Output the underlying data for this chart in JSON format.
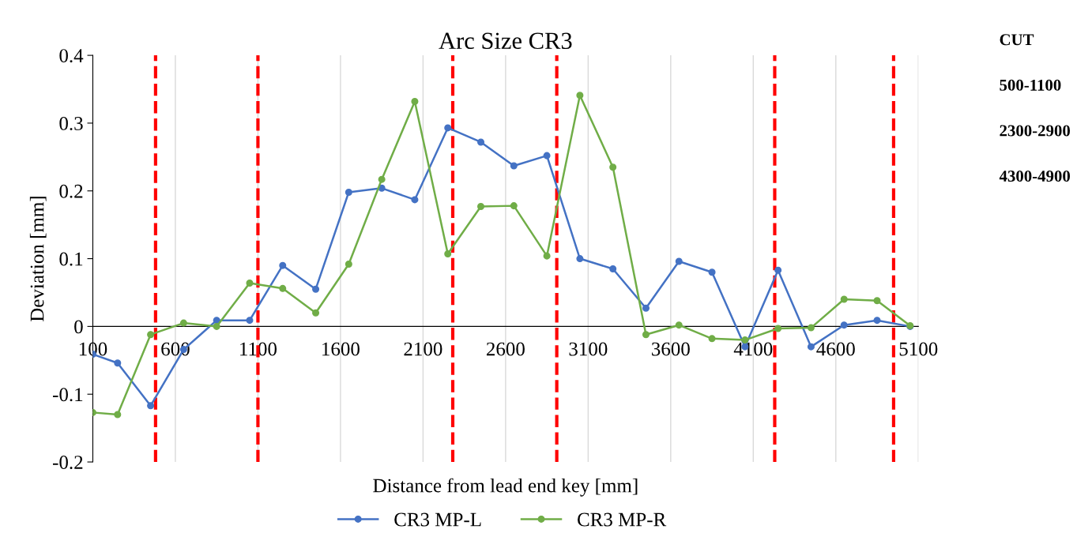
{
  "chart_data": {
    "type": "line",
    "title": "Arc Size CR3",
    "xlabel": "Distance from lead end key [mm]",
    "ylabel": "Deviation [mm]",
    "x": [
      100,
      250,
      450,
      650,
      850,
      1050,
      1250,
      1450,
      1650,
      1850,
      2050,
      2250,
      2450,
      2650,
      2850,
      3050,
      3250,
      3450,
      3650,
      3850,
      4050,
      4250,
      4450,
      4650,
      4850,
      5050
    ],
    "series": [
      {
        "name": "CR3 MP-L",
        "color": "#4472c4",
        "values": [
          -0.041,
          -0.054,
          -0.117,
          -0.034,
          0.009,
          0.009,
          0.09,
          0.055,
          0.198,
          0.204,
          0.187,
          0.293,
          0.272,
          0.237,
          0.252,
          0.1,
          0.085,
          0.027,
          0.096,
          0.08,
          -0.03,
          0.083,
          -0.03,
          0.002,
          0.009,
          0.0
        ]
      },
      {
        "name": "CR3 MP-R",
        "color": "#70ad47",
        "values": [
          -0.127,
          -0.13,
          -0.012,
          0.005,
          0.0,
          0.064,
          0.056,
          0.02,
          0.092,
          0.217,
          0.332,
          0.107,
          0.177,
          0.178,
          0.104,
          0.341,
          0.235,
          -0.012,
          0.002,
          -0.018,
          -0.02,
          -0.003,
          -0.002,
          0.04,
          0.038,
          0.001
        ]
      }
    ],
    "xlim": [
      100,
      5100
    ],
    "xticks": [
      100,
      600,
      1100,
      1600,
      2100,
      2600,
      3100,
      3600,
      4100,
      4600,
      5100
    ],
    "ylim": [
      -0.2,
      0.4
    ],
    "yticks": [
      -0.2,
      -0.1,
      0,
      0.1,
      0.2,
      0.3,
      0.4
    ],
    "grid": "x",
    "legend": "bottom",
    "marker": "circle",
    "line_style": "solid",
    "ref_lines": [
      {
        "axis": "x",
        "value": 480,
        "color": "#ff0000",
        "line_style": "dashed"
      },
      {
        "axis": "x",
        "value": 1100,
        "color": "#ff0000",
        "line_style": "dashed"
      },
      {
        "axis": "x",
        "value": 2280,
        "color": "#ff0000",
        "line_style": "dashed"
      },
      {
        "axis": "x",
        "value": 2910,
        "color": "#ff0000",
        "line_style": "dashed"
      },
      {
        "axis": "x",
        "value": 4230,
        "color": "#ff0000",
        "line_style": "dashed"
      },
      {
        "axis": "x",
        "value": 4950,
        "color": "#ff0000",
        "line_style": "dashed"
      }
    ],
    "annotations": [
      "CUT",
      "500-1100",
      "2300-2900",
      "4300-4900"
    ]
  }
}
